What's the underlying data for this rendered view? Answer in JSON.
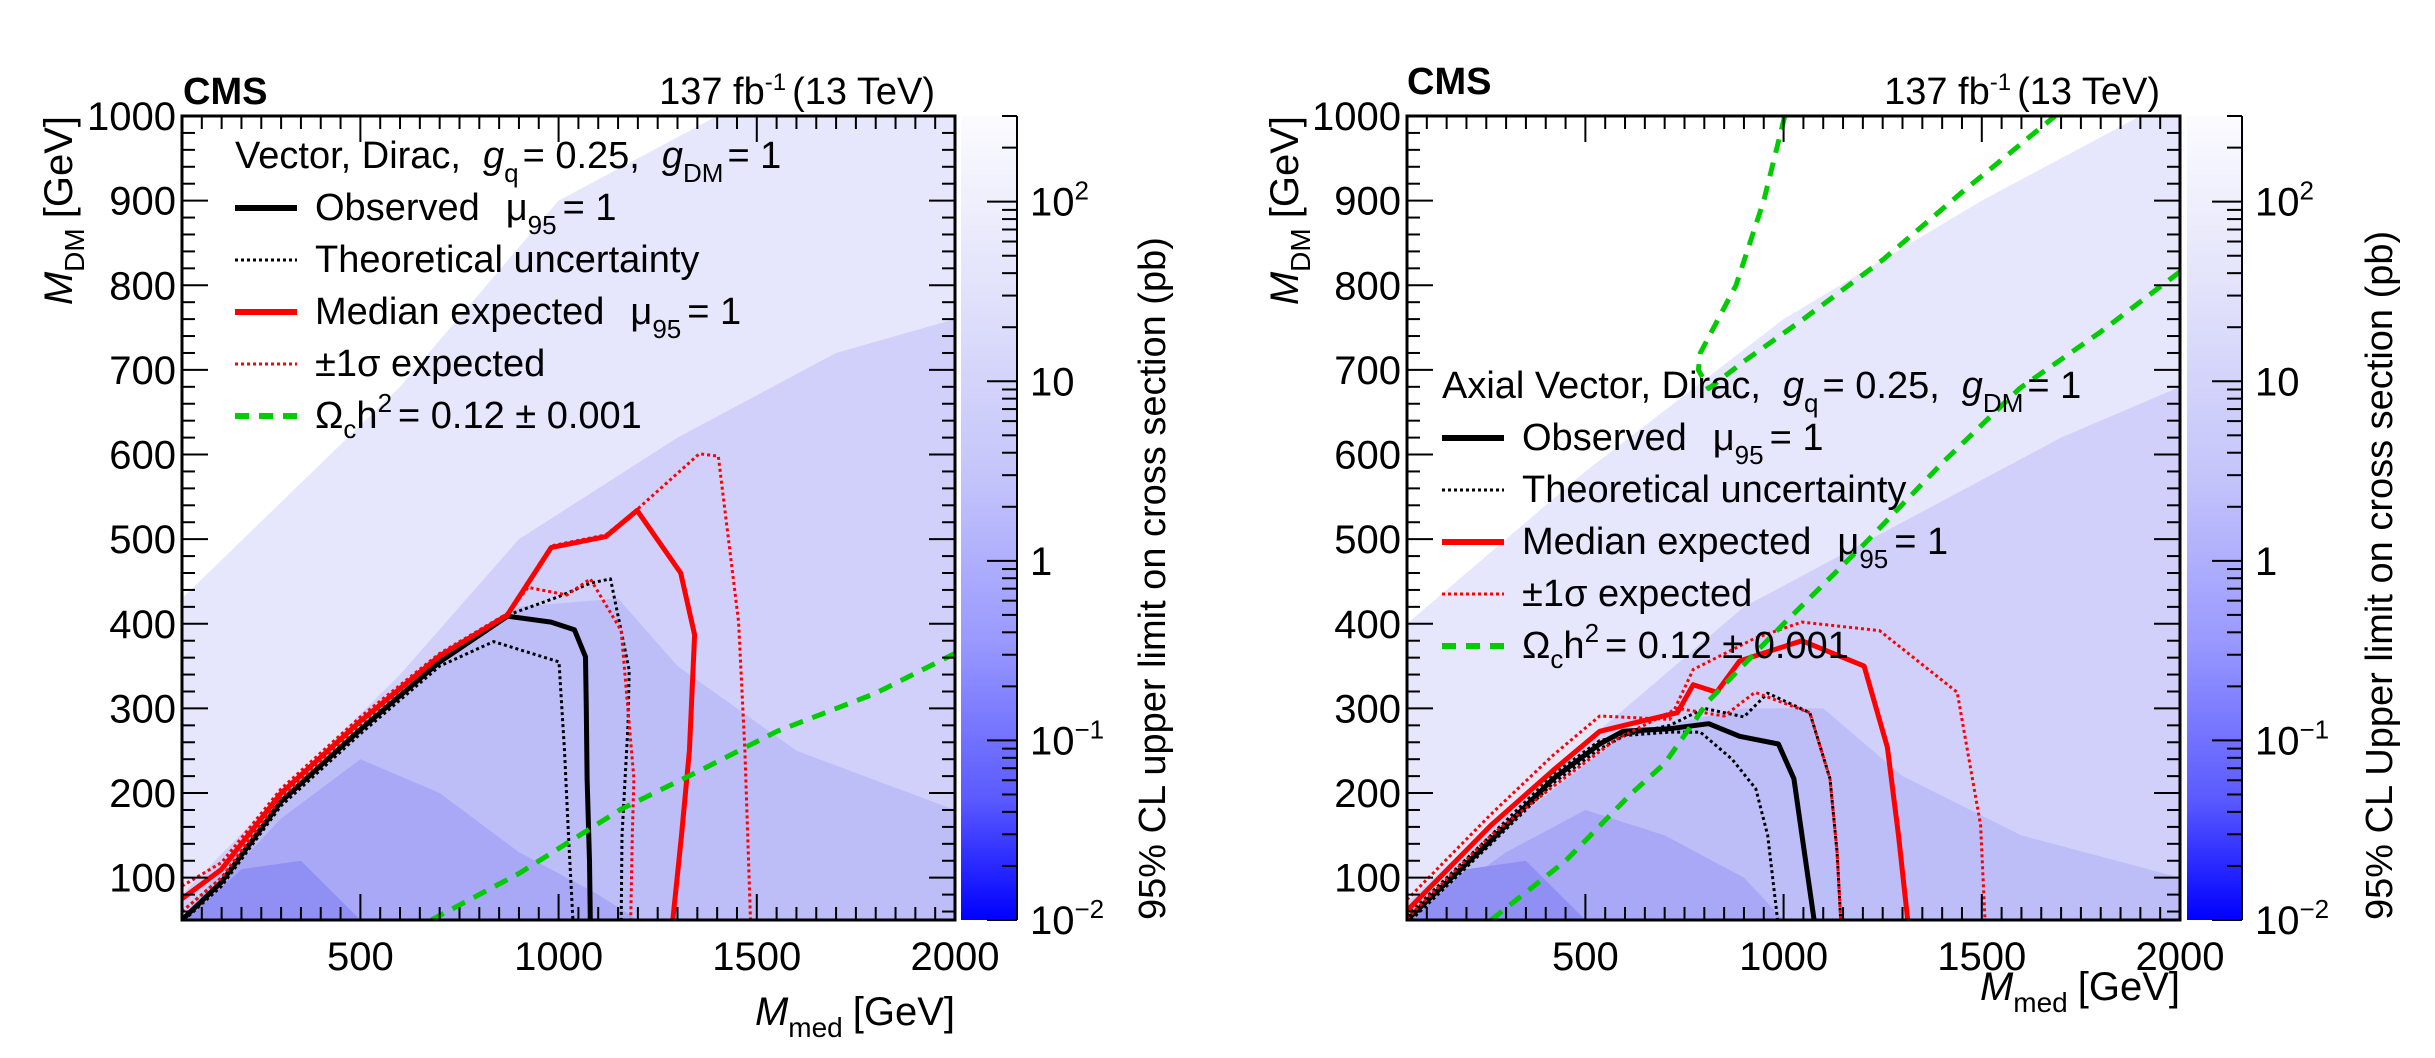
{
  "chart_data": [
    {
      "type": "heatmap",
      "experiment_label": "CMS",
      "lumi_label": "137 fb",
      "lumi_sup": "-1",
      "energy_label": "(13 TeV)",
      "xlabel_main": "M",
      "xlabel_sub": "med",
      "xlabel_unit": "[GeV]",
      "ylabel_main": "M",
      "ylabel_sub": "DM",
      "ylabel_unit": "[GeV]",
      "xlim": [
        50,
        2000
      ],
      "ylim": [
        50,
        1000
      ],
      "xticks": [
        500,
        1000,
        1500,
        2000
      ],
      "yticks": [
        100,
        200,
        300,
        400,
        500,
        600,
        700,
        800,
        900,
        1000
      ],
      "grid": false,
      "colorbar": {
        "label": "95% CL upper limit on cross section (pb)",
        "scale": "log",
        "range": [
          0.01,
          300
        ],
        "ticks": [
          {
            "value": 0.01,
            "base": "10",
            "exp": "−2"
          },
          {
            "value": 0.1,
            "base": "10",
            "exp": "−1"
          },
          {
            "value": 1,
            "base": "1",
            "exp": ""
          },
          {
            "value": 10,
            "base": "10",
            "exp": ""
          },
          {
            "value": 100,
            "base": "10",
            "exp": "2"
          }
        ]
      },
      "legend": {
        "placement": "top-left",
        "header": {
          "model": "Vector, Dirac,",
          "gq_label": "g",
          "gq_sub": "q",
          "gq_value": "= 0.25,",
          "gdm_label": "g",
          "gdm_sub": "DM",
          "gdm_value": "= 1"
        },
        "entries": [
          {
            "key": "observed",
            "label": "Observed",
            "mu": "μ",
            "mu_sub": "95",
            "mu_value": "= 1",
            "color": "#000000",
            "style": "solid"
          },
          {
            "key": "theory",
            "label": "Theoretical uncertainty",
            "color": "#000000",
            "style": "dotted"
          },
          {
            "key": "expected",
            "label": "Median expected",
            "mu": "μ",
            "mu_sub": "95",
            "mu_value": "= 1",
            "color": "#ff0000",
            "style": "solid"
          },
          {
            "key": "sigma",
            "label": "±1σ expected",
            "color": "#ff0000",
            "style": "dotted"
          },
          {
            "key": "relic",
            "label": "Ω",
            "label_sub": "c",
            "label_rest": "h",
            "label_sup": "2",
            "label_value": "= 0.12   ± 0.001",
            "color": "#00cc00",
            "style": "dashed"
          }
        ]
      },
      "series": [
        {
          "name": "Observed",
          "color": "#000000",
          "style": "solid",
          "points": [
            [
              50,
              50
            ],
            [
              150,
              95
            ],
            [
              300,
              190
            ],
            [
              500,
              275
            ],
            [
              700,
              355
            ],
            [
              871,
              409
            ],
            [
              981,
              402
            ],
            [
              1040,
              393
            ],
            [
              1068,
              361
            ],
            [
              1070,
              300
            ],
            [
              1072,
              217
            ],
            [
              1078,
              120
            ],
            [
              1080,
              50
            ]
          ]
        },
        {
          "name": "Theoretical uncertainty (low)",
          "color": "#000000",
          "style": "dotted",
          "points": [
            [
              55,
              50
            ],
            [
              150,
              90
            ],
            [
              300,
              185
            ],
            [
              500,
              270
            ],
            [
              700,
              350
            ],
            [
              836,
              379
            ],
            [
              1001,
              355
            ],
            [
              1015,
              250
            ],
            [
              1025,
              150
            ],
            [
              1036,
              50
            ]
          ]
        },
        {
          "name": "Theoretical uncertainty (high)",
          "color": "#000000",
          "style": "dotted",
          "points": [
            [
              50,
              60
            ],
            [
              150,
              100
            ],
            [
              300,
              195
            ],
            [
              500,
              280
            ],
            [
              700,
              360
            ],
            [
              870,
              410
            ],
            [
              1000,
              432
            ],
            [
              1080,
              448
            ],
            [
              1131,
              453
            ],
            [
              1178,
              345
            ],
            [
              1175,
              280
            ],
            [
              1160,
              150
            ],
            [
              1158,
              50
            ]
          ]
        },
        {
          "name": "Median expected",
          "color": "#ff0000",
          "style": "solid",
          "points": [
            [
              50,
              75
            ],
            [
              150,
              110
            ],
            [
              300,
              200
            ],
            [
              500,
              285
            ],
            [
              700,
              362
            ],
            [
              870,
              410
            ],
            [
              981,
              490
            ],
            [
              1119,
              503
            ],
            [
              1198,
              534
            ],
            [
              1308,
              460
            ],
            [
              1343,
              387
            ],
            [
              1330,
              250
            ],
            [
              1310,
              150
            ],
            [
              1288,
              50
            ]
          ]
        },
        {
          "name": "+1σ expected",
          "color": "#ff0000",
          "style": "dotted",
          "points": [
            [
              50,
              90
            ],
            [
              150,
              118
            ],
            [
              300,
              205
            ],
            [
              500,
              290
            ],
            [
              700,
              365
            ],
            [
              870,
              412
            ],
            [
              981,
              492
            ],
            [
              1119,
              505
            ],
            [
              1198,
              535
            ],
            [
              1355,
              601
            ],
            [
              1403,
              598
            ],
            [
              1454,
              402
            ],
            [
              1470,
              250
            ],
            [
              1484,
              50
            ]
          ]
        },
        {
          "name": "-1σ expected",
          "color": "#ff0000",
          "style": "dotted",
          "points": [
            [
              50,
              60
            ],
            [
              150,
              100
            ],
            [
              300,
              195
            ],
            [
              500,
              282
            ],
            [
              700,
              360
            ],
            [
              870,
              412
            ],
            [
              923,
              443
            ],
            [
              1021,
              434
            ],
            [
              1080,
              453
            ],
            [
              1158,
              392
            ],
            [
              1190,
              217
            ],
            [
              1186,
              150
            ],
            [
              1182,
              50
            ]
          ]
        },
        {
          "name": "Relic density",
          "color": "#00cc00",
          "style": "dashed",
          "points": [
            [
              679,
              50
            ],
            [
              900,
              105
            ],
            [
              1158,
              181
            ],
            [
              1350,
              225
            ],
            [
              1551,
              273
            ],
            [
              1800,
              318
            ],
            [
              2000,
              365
            ]
          ]
        }
      ]
    },
    {
      "type": "heatmap",
      "experiment_label": "CMS",
      "lumi_label": "137 fb",
      "lumi_sup": "-1",
      "energy_label": "(13 TeV)",
      "xlabel_main": "M",
      "xlabel_sub": "med",
      "xlabel_unit": "[GeV]",
      "ylabel_main": "M",
      "ylabel_sub": "DM",
      "ylabel_unit": "[GeV]",
      "xlim": [
        50,
        2000
      ],
      "ylim": [
        50,
        1000
      ],
      "xticks": [
        500,
        1000,
        1500,
        2000
      ],
      "yticks": [
        100,
        200,
        300,
        400,
        500,
        600,
        700,
        800,
        900,
        1000
      ],
      "grid": false,
      "colorbar": {
        "label": "95% CL Upper limit on cross section (pb)",
        "scale": "log",
        "range": [
          0.01,
          300
        ],
        "ticks": [
          {
            "value": 0.01,
            "base": "10",
            "exp": "−2"
          },
          {
            "value": 0.1,
            "base": "10",
            "exp": "−1"
          },
          {
            "value": 1,
            "base": "1",
            "exp": ""
          },
          {
            "value": 10,
            "base": "10",
            "exp": ""
          },
          {
            "value": 100,
            "base": "10",
            "exp": "2"
          }
        ]
      },
      "legend": {
        "placement": "middle-left",
        "header": {
          "model": "Axial Vector, Dirac,",
          "gq_label": "g",
          "gq_sub": "q",
          "gq_value": "= 0.25,",
          "gdm_label": "g",
          "gdm_sub": "DM",
          "gdm_value": "= 1"
        },
        "entries": [
          {
            "key": "observed",
            "label": "Observed",
            "mu": "μ",
            "mu_sub": "95",
            "mu_value": "= 1",
            "color": "#000000",
            "style": "solid"
          },
          {
            "key": "theory",
            "label": "Theoretical uncertainty",
            "color": "#000000",
            "style": "dotted"
          },
          {
            "key": "expected",
            "label": "Median expected",
            "mu": "μ",
            "mu_sub": "95",
            "mu_value": "= 1",
            "color": "#ff0000",
            "style": "solid"
          },
          {
            "key": "sigma",
            "label": "±1σ expected",
            "color": "#ff0000",
            "style": "dotted"
          },
          {
            "key": "relic",
            "label": "Ω",
            "label_sub": "c",
            "label_rest": "h",
            "label_sup": "2",
            "label_value": "= 0.12   ± 0.001",
            "color": "#00cc00",
            "style": "dashed"
          }
        ]
      },
      "series": [
        {
          "name": "Observed",
          "color": "#000000",
          "style": "solid",
          "points": [
            [
              50,
              50
            ],
            [
              262,
              144
            ],
            [
              419,
              217
            ],
            [
              536,
              258
            ],
            [
              595,
              273
            ],
            [
              713,
              276
            ],
            [
              811,
              282
            ],
            [
              889,
              267
            ],
            [
              987,
              258
            ],
            [
              1026,
              217
            ],
            [
              1054,
              125
            ],
            [
              1077,
              50
            ]
          ]
        },
        {
          "name": "Theoretical uncertainty (low)",
          "color": "#000000",
          "style": "dotted",
          "points": [
            [
              60,
              50
            ],
            [
              262,
              140
            ],
            [
              419,
              212
            ],
            [
              536,
              252
            ],
            [
              600,
              268
            ],
            [
              713,
              272
            ],
            [
              790,
              272
            ],
            [
              870,
              240
            ],
            [
              930,
              205
            ],
            [
              960,
              150
            ],
            [
              985,
              50
            ]
          ]
        },
        {
          "name": "Theoretical uncertainty (high)",
          "color": "#000000",
          "style": "dotted",
          "points": [
            [
              50,
              55
            ],
            [
              262,
              150
            ],
            [
              419,
              222
            ],
            [
              536,
              262
            ],
            [
              713,
              280
            ],
            [
              800,
              300
            ],
            [
              900,
              290
            ],
            [
              960,
              318
            ],
            [
              1066,
              295
            ],
            [
              1117,
              217
            ],
            [
              1135,
              130
            ],
            [
              1144,
              50
            ]
          ]
        },
        {
          "name": "Median expected",
          "color": "#ff0000",
          "style": "solid",
          "points": [
            [
              50,
              61
            ],
            [
              262,
              162
            ],
            [
              419,
              227
            ],
            [
              536,
              273
            ],
            [
              615,
              282
            ],
            [
              732,
              295
            ],
            [
              772,
              328
            ],
            [
              831,
              319
            ],
            [
              889,
              356
            ],
            [
              1046,
              380
            ],
            [
              1203,
              350
            ],
            [
              1262,
              254
            ],
            [
              1290,
              150
            ],
            [
              1313,
              50
            ]
          ]
        },
        {
          "name": "+1σ expected",
          "color": "#ff0000",
          "style": "dotted",
          "points": [
            [
              50,
              74
            ],
            [
              262,
              175
            ],
            [
              419,
              245
            ],
            [
              536,
              291
            ],
            [
              713,
              287
            ],
            [
              772,
              346
            ],
            [
              928,
              383
            ],
            [
              1046,
              402
            ],
            [
              1242,
              392
            ],
            [
              1438,
              319
            ],
            [
              1497,
              162
            ],
            [
              1508,
              50
            ]
          ]
        },
        {
          "name": "-1σ expected",
          "color": "#ff0000",
          "style": "dotted",
          "points": [
            [
              50,
              52
            ],
            [
              262,
              150
            ],
            [
              419,
              208
            ],
            [
              576,
              263
            ],
            [
              732,
              300
            ],
            [
              850,
              291
            ],
            [
              928,
              319
            ],
            [
              1066,
              295
            ],
            [
              1117,
              217
            ],
            [
              1135,
              130
            ],
            [
              1144,
              50
            ]
          ]
        },
        {
          "name": "Relic density (lower branch)",
          "color": "#00cc00",
          "style": "dashed",
          "points": [
            [
              262,
              50
            ],
            [
              450,
              120
            ],
            [
              615,
              199
            ],
            [
              700,
              235
            ],
            [
              811,
              309
            ],
            [
              1000,
              400
            ],
            [
              1203,
              494
            ],
            [
              1400,
              590
            ],
            [
              1595,
              678
            ],
            [
              1800,
              745
            ],
            [
              2000,
              816
            ]
          ]
        },
        {
          "name": "Relic density (upper branch)",
          "color": "#00cc00",
          "style": "dashed",
          "points": [
            [
              1003,
              1000
            ],
            [
              950,
              900
            ],
            [
              880,
              800
            ],
            [
              790,
              720
            ],
            [
              785,
              700
            ],
            [
              811,
              678
            ],
            [
              900,
              710
            ],
            [
              1050,
              760
            ],
            [
              1250,
              830
            ],
            [
              1450,
              910
            ],
            [
              1685,
              1000
            ]
          ]
        }
      ]
    }
  ]
}
